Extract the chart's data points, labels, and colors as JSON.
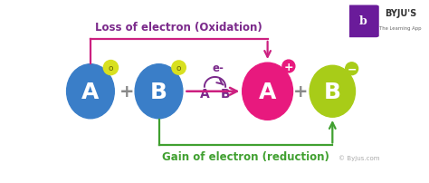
{
  "bg_color": "#ffffff",
  "blue_color": "#3a7ec8",
  "pink_color": "#e8197e",
  "green_color": "#a8cc18",
  "yellow_color": "#d8e020",
  "purple_color": "#7b2a8b",
  "magenta_arrow_color": "#cc2080",
  "green_arrow_color": "#40a030",
  "title": "Loss of electron (Oxidation)",
  "subtitle": "Gain of electron (reduction)",
  "byju_text": "© Byjus.com",
  "elem_A1": "A",
  "elem_B1": "B",
  "elem_A2": "A",
  "elem_B2": "B",
  "electron_label": "e-",
  "plus_color": "#888888",
  "small_label_color": "#7b2a8b",
  "logo_purple": "#6a1b9a",
  "logo_text_color": "#333333"
}
